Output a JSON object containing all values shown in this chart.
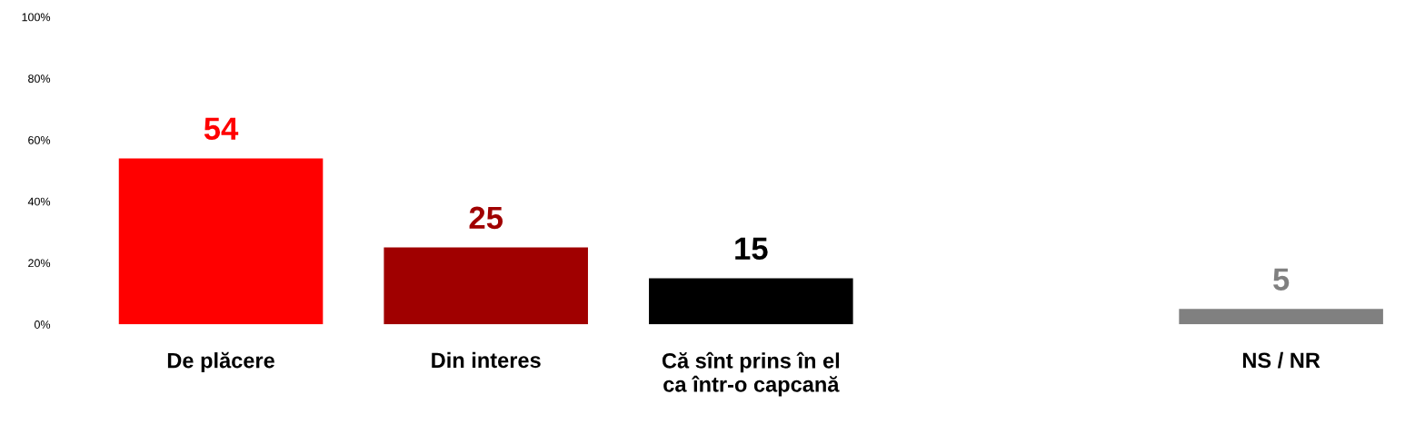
{
  "chart_data": {
    "type": "bar",
    "categories": [
      "De plăcere",
      "Din interes",
      "Că sînt prins în el\nca într-o capcană",
      null,
      "NS / NR"
    ],
    "values": [
      54,
      25,
      15,
      null,
      5
    ],
    "colors": [
      "#ff0000",
      "#a00000",
      "#000000",
      "#808080",
      "#808080"
    ],
    "data_labels": true,
    "ylim": [
      0,
      100
    ],
    "yticks": [
      {
        "value": 0,
        "label": "0%"
      },
      {
        "value": 20,
        "label": "20%"
      },
      {
        "value": 40,
        "label": "40%"
      },
      {
        "value": 60,
        "label": "60%"
      },
      {
        "value": 80,
        "label": "80%"
      },
      {
        "value": 100,
        "label": "100%"
      }
    ],
    "grid": false,
    "legend": false
  }
}
